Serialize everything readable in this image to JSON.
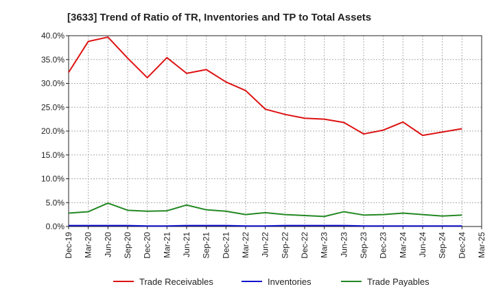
{
  "chart_data": {
    "type": "line",
    "title": "[3633]  Trend of Ratio of TR, Inventories and TP to Total Assets",
    "xlabel": "",
    "ylabel": "",
    "x_ticks": [
      "Dec-19",
      "Mar-20",
      "Jun-20",
      "Sep-20",
      "Dec-20",
      "Mar-21",
      "Jun-21",
      "Sep-21",
      "Dec-21",
      "Mar-22",
      "Jun-22",
      "Sep-22",
      "Dec-22",
      "Mar-23",
      "Jun-23",
      "Sep-23",
      "Dec-23",
      "Mar-24",
      "Jun-24",
      "Sep-24",
      "Dec-24",
      "Mar-25"
    ],
    "x": [
      "Dec-19",
      "Mar-20",
      "Jun-20",
      "Sep-20",
      "Dec-20",
      "Mar-21",
      "Jun-21",
      "Sep-21",
      "Dec-21",
      "Mar-22",
      "Jun-22",
      "Sep-22",
      "Dec-22",
      "Mar-23",
      "Jun-23",
      "Sep-23",
      "Dec-23",
      "Mar-24",
      "Jun-24",
      "Sep-24",
      "Dec-24"
    ],
    "ylim": [
      0,
      40
    ],
    "y_ticks": [
      "0.0%",
      "5.0%",
      "10.0%",
      "15.0%",
      "20.0%",
      "25.0%",
      "30.0%",
      "35.0%",
      "40.0%"
    ],
    "grid": true,
    "legend_position": "bottom",
    "series": [
      {
        "name": "Trade Receivables",
        "color": "#dd1111",
        "values": [
          32.3,
          38.8,
          39.7,
          35.3,
          31.2,
          35.4,
          32.1,
          32.9,
          30.3,
          28.5,
          24.6,
          23.5,
          22.7,
          22.5,
          21.8,
          19.4,
          20.2,
          21.9,
          19.1,
          19.8,
          20.5
        ]
      },
      {
        "name": "Inventories",
        "color": "#1111cc",
        "values": [
          0.2,
          0.2,
          0.2,
          0.2,
          0.1,
          0.1,
          0.2,
          0.2,
          0.2,
          0.1,
          0.1,
          0.2,
          0.2,
          0.2,
          0.2,
          0.1,
          0.1,
          0.1,
          0.1,
          0.1,
          0.1
        ]
      },
      {
        "name": "Trade Payables",
        "color": "#228822",
        "values": [
          2.8,
          3.1,
          4.9,
          3.4,
          3.2,
          3.3,
          4.5,
          3.5,
          3.2,
          2.5,
          2.9,
          2.5,
          2.3,
          2.1,
          3.1,
          2.4,
          2.5,
          2.8,
          2.5,
          2.2,
          2.4
        ]
      }
    ]
  }
}
